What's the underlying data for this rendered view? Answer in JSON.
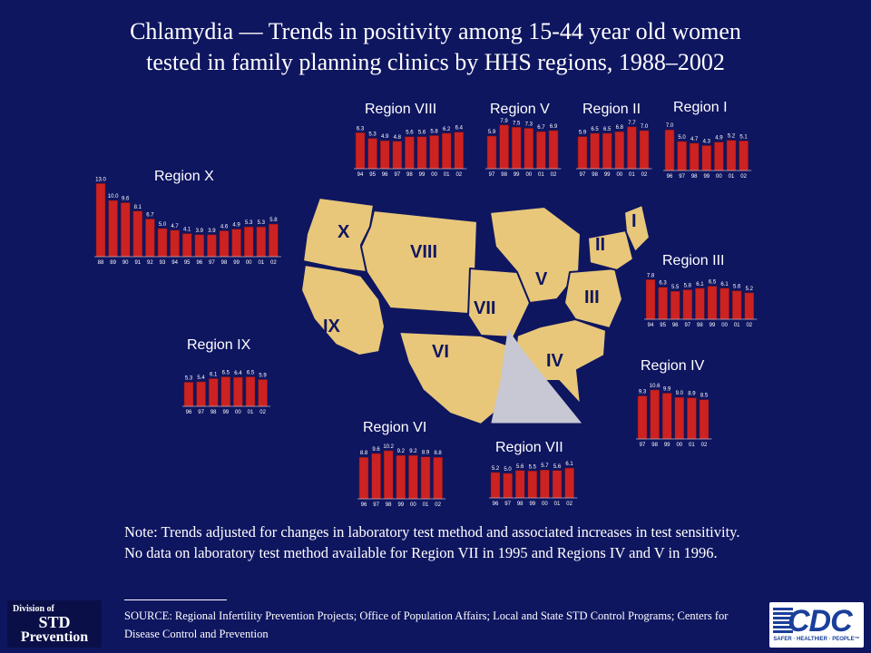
{
  "title": {
    "line1": "Chlamydia — Trends in positivity among 15-44 year old women",
    "line2": "tested in family planning clinics by HHS regions, 1988–2002"
  },
  "colors": {
    "background": "#0f1660",
    "bar": "#cc2222",
    "map_land": "#e8c77a",
    "map_highlight": "#c8c8d4",
    "text": "#ffffff"
  },
  "map_labels": [
    "X",
    "VIII",
    "V",
    "II",
    "I",
    "III",
    "VII",
    "IX",
    "VI",
    "IV"
  ],
  "chart_data": [
    {
      "type": "bar",
      "title": "Region X",
      "categories": [
        "88",
        "89",
        "90",
        "91",
        "92",
        "93",
        "94",
        "95",
        "96",
        "97",
        "98",
        "99",
        "00",
        "01",
        "02"
      ],
      "values": [
        13.0,
        10.0,
        9.6,
        8.1,
        6.7,
        5.0,
        4.7,
        4.1,
        3.9,
        3.9,
        4.6,
        4.9,
        5.3,
        5.3,
        5.8
      ],
      "labels": [
        "13.0",
        "10.0",
        "9.6",
        "8.1",
        "6.7",
        "5.0",
        "4.7",
        "4.1",
        "3.9",
        "3.9",
        "4.6",
        "4.9",
        "5.3",
        "5.3",
        "5.8"
      ]
    },
    {
      "type": "bar",
      "title": "Region VIII",
      "categories": [
        "94",
        "95",
        "96",
        "97",
        "98",
        "99",
        "00",
        "01",
        "02"
      ],
      "values": [
        6.3,
        5.3,
        4.9,
        4.8,
        5.6,
        5.6,
        5.8,
        6.2,
        6.4
      ],
      "labels": [
        "6.3",
        "5.3",
        "4.9",
        "4.8",
        "5.6",
        "5.6",
        "5.8",
        "6.2",
        "6.4"
      ]
    },
    {
      "type": "bar",
      "title": "Region V",
      "categories": [
        "97",
        "98",
        "99",
        "00",
        "01",
        "02"
      ],
      "values": [
        5.9,
        7.9,
        7.5,
        7.3,
        6.7,
        6.9
      ],
      "labels": [
        "5.9",
        "7.9",
        "7.5",
        "7.3",
        "6.7",
        "6.9"
      ]
    },
    {
      "type": "bar",
      "title": "Region II",
      "categories": [
        "97",
        "98",
        "99",
        "00",
        "01",
        "02"
      ],
      "values": [
        5.9,
        6.5,
        6.5,
        6.8,
        7.7,
        7.0
      ],
      "labels": [
        "5.9",
        "6.5",
        "6.5",
        "6.8",
        "7.7",
        "7.0"
      ]
    },
    {
      "type": "bar",
      "title": "Region I",
      "categories": [
        "96",
        "97",
        "98",
        "99",
        "00",
        "01",
        "02"
      ],
      "values": [
        7.0,
        5.0,
        4.7,
        4.3,
        4.9,
        5.2,
        5.1
      ],
      "labels": [
        "7.0",
        "5.0",
        "4.7",
        "4.3",
        "4.9",
        "5.2",
        "5.1"
      ]
    },
    {
      "type": "bar",
      "title": "Region III",
      "categories": [
        "94",
        "95",
        "96",
        "97",
        "98",
        "99",
        "00",
        "01",
        "02"
      ],
      "values": [
        7.8,
        6.3,
        5.5,
        5.8,
        6.1,
        6.5,
        6.1,
        5.6,
        5.2
      ],
      "labels": [
        "7.8",
        "6.3",
        "5.5",
        "5.8",
        "6.1",
        "6.5",
        "6.1",
        "5.6",
        "5.2"
      ]
    },
    {
      "type": "bar",
      "title": "Region IX",
      "categories": [
        "96",
        "97",
        "98",
        "99",
        "00",
        "01",
        "02"
      ],
      "values": [
        5.3,
        5.4,
        6.1,
        6.5,
        6.4,
        6.5,
        5.9
      ],
      "labels": [
        "5.3",
        "5.4",
        "6.1",
        "6.5",
        "6.4",
        "6.5",
        "5.9"
      ]
    },
    {
      "type": "bar",
      "title": "Region IV",
      "categories": [
        "97",
        "98",
        "99",
        "00",
        "01",
        "02"
      ],
      "values": [
        9.3,
        10.6,
        9.9,
        9.0,
        8.9,
        8.5
      ],
      "labels": [
        "9.3",
        "10.6",
        "9.9",
        "9.0",
        "8.9",
        "8.5"
      ]
    },
    {
      "type": "bar",
      "title": "Region VI",
      "categories": [
        "96",
        "97",
        "98",
        "99",
        "00",
        "01",
        "02"
      ],
      "values": [
        8.8,
        9.6,
        10.2,
        9.2,
        9.2,
        8.9,
        8.8
      ],
      "labels": [
        "8.8",
        "9.6",
        "10.2",
        "9.2",
        "9.2",
        "8.9",
        "8.8"
      ]
    },
    {
      "type": "bar",
      "title": "Region VII",
      "categories": [
        "96",
        "97",
        "98",
        "99",
        "00",
        "01",
        "02"
      ],
      "values": [
        5.2,
        5.0,
        5.6,
        5.5,
        5.7,
        5.6,
        6.1
      ],
      "labels": [
        "5.2",
        "5.0",
        "5.6",
        "5.5",
        "5.7",
        "5.6",
        "6.1"
      ]
    }
  ],
  "note": "Note: Trends adjusted for changes in laboratory test method and associated increases in test sensitivity. No data on laboratory test method available for Region VII in 1995 and Regions IV and V in 1996.",
  "source": "SOURCE: Regional Infertility Prevention Projects; Office of Population Affairs; Local and State STD Control Programs; Centers for Disease Control and Prevention",
  "logos": {
    "std": {
      "line1": "Division of",
      "line2": "STD",
      "line3": "Prevention"
    },
    "cdc": {
      "mark": "CDC",
      "tagline": "SAFER · HEALTHIER · PEOPLE™"
    }
  }
}
